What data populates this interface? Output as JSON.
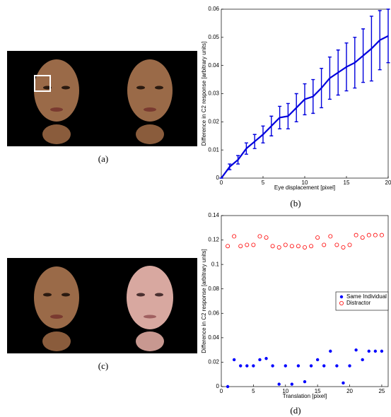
{
  "images": [
    {
      "label": "(a)"
    },
    {
      "label": "(c)"
    }
  ],
  "chart_data": [
    {
      "type": "line",
      "panel_label": "(b)",
      "x_label": "Eye displacement [pixel]",
      "y_label": "Difference in C2 response [arbitrary units]",
      "x": [
        0,
        1,
        2,
        3,
        4,
        5,
        6,
        7,
        8,
        9,
        10,
        11,
        12,
        13,
        14,
        15,
        16,
        17,
        18,
        19,
        20
      ],
      "series": [
        {
          "color": "#0000dd",
          "values": [
            0,
            0.004,
            0.0065,
            0.0105,
            0.013,
            0.0155,
            0.0185,
            0.0215,
            0.022,
            0.025,
            0.028,
            0.029,
            0.032,
            0.0355,
            0.0375,
            0.0395,
            0.041,
            0.0435,
            0.046,
            0.049,
            0.0505
          ],
          "errors": [
            0,
            0.001,
            0.0015,
            0.002,
            0.0025,
            0.003,
            0.0035,
            0.004,
            0.0045,
            0.005,
            0.0055,
            0.006,
            0.007,
            0.0075,
            0.008,
            0.0085,
            0.009,
            0.0095,
            0.0115,
            0.0105,
            0.0095
          ]
        }
      ],
      "xlim": [
        0,
        20
      ],
      "xticks": [
        0,
        5,
        10,
        15,
        20
      ],
      "ylim": [
        0,
        0.06
      ],
      "yticks": [
        0,
        0.01,
        0.02,
        0.03,
        0.04,
        0.05,
        0.06
      ]
    },
    {
      "type": "scatter",
      "panel_label": "(d)",
      "x_label": "Translation [pixel]",
      "y_label": "Difference in C2 response [arbitrary units]",
      "x": [
        1,
        2,
        3,
        4,
        5,
        6,
        7,
        8,
        9,
        10,
        11,
        12,
        13,
        14,
        15,
        16,
        17,
        18,
        19,
        20,
        21,
        22,
        23,
        24,
        25
      ],
      "series": [
        {
          "name": "Same Individual",
          "color": "#0000ff",
          "marker": "filled",
          "values": [
            0,
            0.022,
            0.017,
            0.017,
            0.017,
            0.022,
            0.023,
            0.017,
            0.002,
            0.017,
            0.002,
            0.017,
            0.004,
            0.017,
            0.022,
            0.017,
            0.029,
            0.017,
            0.003,
            0.017,
            0.03,
            0.022,
            0.029,
            0.029,
            0.029
          ]
        },
        {
          "name": "Distractor",
          "color": "#ff0000",
          "marker": "open",
          "values": [
            0.115,
            0.123,
            0.115,
            0.116,
            0.116,
            0.123,
            0.122,
            0.115,
            0.114,
            0.116,
            0.115,
            0.115,
            0.114,
            0.115,
            0.122,
            0.116,
            0.123,
            0.116,
            0.114,
            0.116,
            0.124,
            0.122,
            0.124,
            0.124,
            0.124
          ]
        }
      ],
      "xlim": [
        0,
        26
      ],
      "xticks": [
        0,
        5,
        10,
        15,
        20,
        25
      ],
      "ylim": [
        0,
        0.14
      ],
      "yticks": [
        0,
        0.02,
        0.04,
        0.06,
        0.08,
        0.1,
        0.12,
        0.14
      ],
      "legend": "right"
    }
  ]
}
